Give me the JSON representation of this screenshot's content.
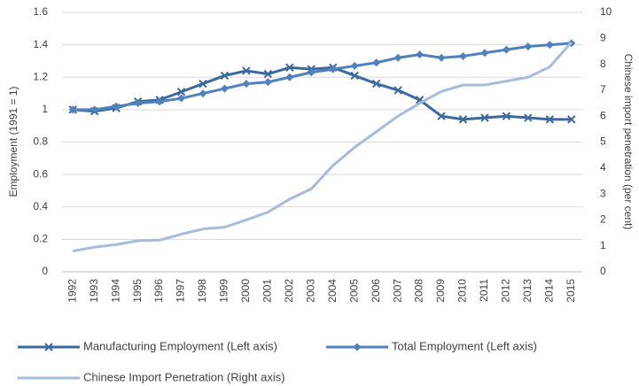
{
  "chart_data": {
    "type": "line",
    "categories": [
      "1992",
      "1993",
      "1994",
      "1995",
      "1996",
      "1997",
      "1998",
      "1999",
      "2000",
      "2001",
      "2002",
      "2003",
      "2004",
      "2005",
      "2006",
      "2007",
      "2008",
      "2009",
      "2010",
      "2011",
      "2012",
      "2013",
      "2014",
      "2015"
    ],
    "y_label": "Employment (1991 = 1)",
    "y2_label": "Chinese import penetration (per cent)",
    "ylim": [
      0,
      1.6
    ],
    "yticks": [
      0,
      0.2,
      0.4,
      0.6,
      0.8,
      1,
      1.2,
      1.4,
      1.6
    ],
    "y2lim": [
      0,
      10
    ],
    "y2ticks": [
      0,
      1,
      2,
      3,
      4,
      5,
      6,
      7,
      8,
      9,
      10
    ],
    "grid": true,
    "series": [
      {
        "name": "Manufacturing Employment (Left axis)",
        "color": "#3d6a9e",
        "marker": "x",
        "values": [
          1.0,
          0.99,
          1.01,
          1.05,
          1.06,
          1.11,
          1.16,
          1.21,
          1.24,
          1.22,
          1.26,
          1.25,
          1.26,
          1.21,
          1.16,
          1.12,
          1.06,
          0.96,
          0.94,
          0.95,
          0.96,
          0.95,
          0.94,
          0.94
        ]
      },
      {
        "name": "Total Employment (Left axis)",
        "color": "#4f81bd",
        "marker": "diamond",
        "values": [
          1.0,
          1.0,
          1.02,
          1.04,
          1.05,
          1.07,
          1.1,
          1.13,
          1.16,
          1.17,
          1.2,
          1.23,
          1.25,
          1.27,
          1.29,
          1.32,
          1.34,
          1.32,
          1.33,
          1.35,
          1.37,
          1.39,
          1.4,
          1.41
        ]
      },
      {
        "name": "Chinese Import Penetration (Right axis)",
        "color": "#a7bcda",
        "axis": "y2",
        "values": [
          0.8,
          0.95,
          1.05,
          1.2,
          1.22,
          1.45,
          1.65,
          1.72,
          2.0,
          2.3,
          2.8,
          3.2,
          4.1,
          4.8,
          5.4,
          6.0,
          6.5,
          6.95,
          7.2,
          7.2,
          7.35,
          7.5,
          7.9,
          8.85
        ]
      }
    ]
  }
}
